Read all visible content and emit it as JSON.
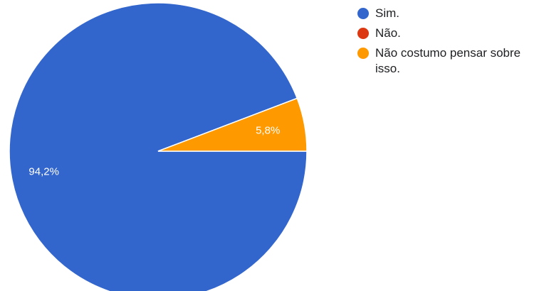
{
  "chart_data": {
    "type": "pie",
    "categories": [
      "Sim.",
      "Não.",
      "Não costumo pensar sobre isso."
    ],
    "values": [
      94.2,
      0,
      5.8
    ],
    "value_labels": [
      "94,2%",
      "",
      "5,8%"
    ],
    "colors": [
      "#3366cc",
      "#dc3912",
      "#ff9900"
    ],
    "legend_position": "top-right"
  }
}
